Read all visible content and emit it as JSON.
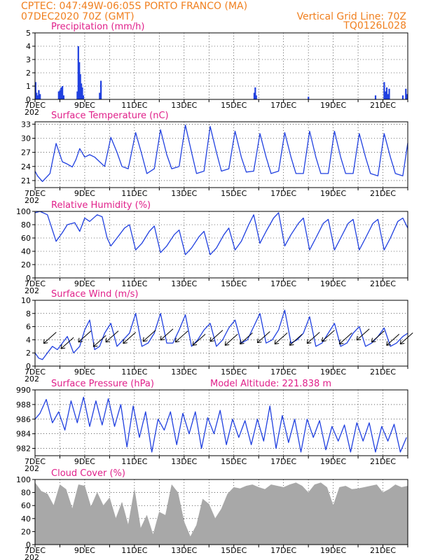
{
  "header": {
    "line1": "CPTEC:    047:49W-06:05S   PORTO FRANCO (MA)",
    "line2": "07DEC2020 70Z (GMT)",
    "grid_note": "Vertical Grid Line: 70Z",
    "code": "TQ0126L028"
  },
  "colors": {
    "header": "#f08020",
    "title": "#e0208a",
    "series": "#2040e0",
    "cloud": "#a8a8a8",
    "arrow": "#000000"
  },
  "x_axis": {
    "start_day": 7,
    "end_day": 22,
    "labels": [
      {
        "day": 7,
        "text": "7DEC"
      },
      {
        "day": 9,
        "text": "9DEC"
      },
      {
        "day": 11,
        "text": "11DEC"
      },
      {
        "day": 13,
        "text": "13DEC"
      },
      {
        "day": 15,
        "text": "15DEC"
      },
      {
        "day": 17,
        "text": "17DEC"
      },
      {
        "day": 19,
        "text": "19DEC"
      },
      {
        "day": 21,
        "text": "21DEC"
      }
    ],
    "year_stub": "202"
  },
  "chart_data": [
    {
      "id": "precip",
      "type": "bar",
      "title": "Precipitation  (mm/h)",
      "ylim": [
        0,
        5
      ],
      "yticks": [
        0,
        1,
        2,
        3,
        4,
        5
      ],
      "x": [
        7.02,
        7.06,
        7.1,
        7.15,
        7.2,
        7.95,
        8.0,
        8.05,
        8.1,
        8.15,
        8.7,
        8.74,
        8.78,
        8.82,
        8.86,
        8.9,
        8.94,
        9.6,
        9.65,
        15.82,
        15.86,
        15.9,
        18.0,
        20.7,
        21.05,
        21.1,
        21.15,
        21.2,
        21.25,
        21.8,
        21.92,
        21.97
      ],
      "values": [
        1.3,
        0.5,
        0.3,
        0.7,
        0.4,
        0.6,
        0.7,
        0.9,
        1.0,
        0.3,
        0.6,
        4.0,
        2.8,
        1.9,
        1.2,
        0.9,
        0.3,
        0.5,
        1.4,
        0.5,
        0.9,
        0.3,
        0.2,
        0.3,
        1.3,
        0.6,
        0.9,
        0.4,
        0.8,
        0.3,
        0.8,
        0.4
      ]
    },
    {
      "id": "temp",
      "type": "line",
      "title": "Surface Temperature (nC)",
      "ylim": [
        19.5,
        33.5
      ],
      "yticks": [
        21,
        24,
        27,
        30,
        33
      ],
      "x": [
        7.0,
        7.1,
        7.3,
        7.6,
        7.85,
        8.1,
        8.3,
        8.5,
        8.65,
        8.8,
        9.0,
        9.2,
        9.4,
        9.6,
        9.8,
        10.05,
        10.3,
        10.5,
        10.75,
        11.05,
        11.3,
        11.5,
        11.8,
        12.05,
        12.3,
        12.5,
        12.8,
        13.05,
        13.3,
        13.5,
        13.8,
        14.05,
        14.3,
        14.5,
        14.8,
        15.05,
        15.3,
        15.5,
        15.8,
        16.05,
        16.3,
        16.5,
        16.8,
        17.05,
        17.3,
        17.5,
        17.8,
        18.05,
        18.3,
        18.5,
        18.8,
        19.05,
        19.3,
        19.5,
        19.8,
        20.05,
        20.3,
        20.5,
        20.8,
        21.05,
        21.3,
        21.5,
        21.8,
        22.0
      ],
      "values": [
        23.0,
        22.0,
        20.8,
        22.5,
        28.9,
        25.0,
        24.5,
        23.9,
        25.5,
        27.8,
        26.0,
        26.5,
        26.0,
        25.0,
        24.0,
        30.2,
        27.0,
        24.0,
        23.5,
        31.2,
        26.5,
        22.5,
        23.5,
        31.8,
        26.5,
        23.5,
        24.0,
        32.8,
        27.0,
        22.5,
        23.0,
        32.5,
        27.0,
        23.0,
        23.5,
        31.5,
        26.0,
        22.8,
        23.0,
        31.0,
        26.0,
        22.5,
        23.0,
        31.2,
        26.0,
        22.5,
        22.5,
        31.5,
        26.0,
        22.5,
        22.5,
        31.5,
        26.0,
        22.5,
        22.5,
        31.0,
        26.0,
        22.5,
        22.0,
        31.0,
        26.0,
        22.5,
        22.0,
        29.0
      ]
    },
    {
      "id": "rh",
      "type": "line",
      "title": "Relative Humidity (%)",
      "ylim": [
        0,
        100
      ],
      "yticks": [
        0,
        20,
        40,
        60,
        80,
        100
      ],
      "x": [
        7.0,
        7.2,
        7.5,
        7.85,
        8.1,
        8.3,
        8.6,
        8.8,
        9.0,
        9.2,
        9.5,
        9.7,
        9.9,
        10.05,
        10.3,
        10.6,
        10.8,
        11.05,
        11.3,
        11.6,
        11.8,
        12.05,
        12.3,
        12.6,
        12.8,
        13.05,
        13.3,
        13.6,
        13.8,
        14.05,
        14.3,
        14.6,
        14.8,
        15.05,
        15.3,
        15.6,
        15.8,
        16.05,
        16.3,
        16.6,
        16.8,
        17.05,
        17.3,
        17.6,
        17.8,
        18.05,
        18.3,
        18.6,
        18.8,
        19.05,
        19.3,
        19.6,
        19.8,
        20.05,
        20.3,
        20.6,
        20.8,
        21.05,
        21.3,
        21.6,
        21.8,
        22.0
      ],
      "values": [
        98,
        100,
        95,
        55,
        68,
        80,
        83,
        70,
        90,
        85,
        95,
        92,
        60,
        48,
        60,
        75,
        80,
        42,
        52,
        70,
        78,
        38,
        48,
        65,
        72,
        35,
        45,
        62,
        70,
        35,
        45,
        65,
        75,
        42,
        55,
        80,
        95,
        52,
        70,
        90,
        98,
        48,
        65,
        82,
        90,
        42,
        60,
        82,
        88,
        42,
        60,
        82,
        88,
        42,
        60,
        82,
        88,
        42,
        60,
        85,
        90,
        75
      ]
    },
    {
      "id": "wind",
      "type": "line",
      "title": "Surface Wind (m/s)",
      "ylim": [
        0,
        10
      ],
      "yticks": [
        0,
        2,
        4,
        6,
        8,
        10
      ],
      "x": [
        7.0,
        7.15,
        7.3,
        7.5,
        7.7,
        7.9,
        8.1,
        8.3,
        8.55,
        8.8,
        9.0,
        9.2,
        9.4,
        9.6,
        9.8,
        10.05,
        10.3,
        10.55,
        10.8,
        11.05,
        11.3,
        11.55,
        11.8,
        12.05,
        12.3,
        12.55,
        12.8,
        13.05,
        13.3,
        13.55,
        13.8,
        14.05,
        14.3,
        14.55,
        14.8,
        15.05,
        15.3,
        15.55,
        15.8,
        16.05,
        16.3,
        16.55,
        16.8,
        17.05,
        17.3,
        17.55,
        17.8,
        18.05,
        18.3,
        18.55,
        18.8,
        19.05,
        19.3,
        19.55,
        19.8,
        20.05,
        20.3,
        20.55,
        20.8,
        21.05,
        21.3,
        21.55,
        21.8,
        22.0
      ],
      "values": [
        2.0,
        1.2,
        1.0,
        2.0,
        3.0,
        2.5,
        3.5,
        4.5,
        2.0,
        3.0,
        5.5,
        7.0,
        2.5,
        3.0,
        5.0,
        6.5,
        3.0,
        4.0,
        5.0,
        8.0,
        3.0,
        3.5,
        5.0,
        8.0,
        3.5,
        3.5,
        5.5,
        7.8,
        3.0,
        4.0,
        5.5,
        6.5,
        3.0,
        4.0,
        5.8,
        7.0,
        3.5,
        4.0,
        6.0,
        8.0,
        3.5,
        4.0,
        5.5,
        8.5,
        3.5,
        4.0,
        5.0,
        7.5,
        3.0,
        3.5,
        5.0,
        6.5,
        3.0,
        3.5,
        5.0,
        6.0,
        3.0,
        3.5,
        4.5,
        5.8,
        3.0,
        3.5,
        4.5,
        5.0
      ],
      "barbs": [
        {
          "x": 7.6,
          "y": 4.3
        },
        {
          "x": 8.3,
          "y": 3.5
        },
        {
          "x": 9.0,
          "y": 4.5
        },
        {
          "x": 9.6,
          "y": 3.8
        },
        {
          "x": 10.1,
          "y": 4.5
        },
        {
          "x": 10.8,
          "y": 4.3
        },
        {
          "x": 11.6,
          "y": 4.6
        },
        {
          "x": 12.3,
          "y": 4.8
        },
        {
          "x": 12.9,
          "y": 4.5
        },
        {
          "x": 13.6,
          "y": 4.0
        },
        {
          "x": 14.3,
          "y": 4.6
        },
        {
          "x": 14.9,
          "y": 4.0
        },
        {
          "x": 15.5,
          "y": 4.2
        },
        {
          "x": 16.2,
          "y": 4.4
        },
        {
          "x": 16.9,
          "y": 4.2
        },
        {
          "x": 17.5,
          "y": 4.0
        },
        {
          "x": 18.2,
          "y": 4.3
        },
        {
          "x": 18.8,
          "y": 4.6
        },
        {
          "x": 19.5,
          "y": 4.2
        },
        {
          "x": 20.2,
          "y": 4.8
        },
        {
          "x": 20.8,
          "y": 4.5
        },
        {
          "x": 21.4,
          "y": 4.0
        },
        {
          "x": 21.95,
          "y": 4.2
        }
      ]
    },
    {
      "id": "pres",
      "type": "line",
      "title": "Surface Pressure (hPa)",
      "note": "Model Altitude: 221.838  m",
      "ylim": [
        981,
        990
      ],
      "yticks": [
        982,
        984,
        986,
        988,
        990
      ],
      "x": [
        7.0,
        7.2,
        7.45,
        7.7,
        7.95,
        8.2,
        8.45,
        8.7,
        8.95,
        9.2,
        9.45,
        9.7,
        9.95,
        10.2,
        10.45,
        10.7,
        10.95,
        11.2,
        11.45,
        11.7,
        11.95,
        12.2,
        12.45,
        12.7,
        12.95,
        13.2,
        13.45,
        13.7,
        13.95,
        14.2,
        14.45,
        14.7,
        14.95,
        15.2,
        15.45,
        15.7,
        15.95,
        16.2,
        16.45,
        16.7,
        16.95,
        17.2,
        17.45,
        17.7,
        17.95,
        18.2,
        18.45,
        18.7,
        18.95,
        19.2,
        19.45,
        19.7,
        19.95,
        20.2,
        20.45,
        20.7,
        20.95,
        21.2,
        21.45,
        21.7,
        21.95
      ],
      "values": [
        986.0,
        986.8,
        988.7,
        985.5,
        987.0,
        984.5,
        988.5,
        985.5,
        989.0,
        985.0,
        988.5,
        985.2,
        988.8,
        985.0,
        988.0,
        982.2,
        987.8,
        983.5,
        987.0,
        981.5,
        986.0,
        984.5,
        987.0,
        982.5,
        986.8,
        984.0,
        987.0,
        982.0,
        986.2,
        984.0,
        987.2,
        982.5,
        986.0,
        983.5,
        985.8,
        982.5,
        986.0,
        983.0,
        987.8,
        982.0,
        986.5,
        982.8,
        986.0,
        981.5,
        986.0,
        983.5,
        985.8,
        981.8,
        985.0,
        983.0,
        985.2,
        981.5,
        985.5,
        983.0,
        985.5,
        981.5,
        985.0,
        983.0,
        985.3,
        981.5,
        983.5
      ]
    },
    {
      "id": "cloud",
      "type": "area",
      "title": "Cloud Cover (%)",
      "ylim": [
        0,
        100
      ],
      "yticks": [
        0,
        20,
        40,
        60,
        80,
        100
      ],
      "x": [
        7.0,
        7.25,
        7.5,
        7.75,
        8.0,
        8.25,
        8.5,
        8.75,
        9.0,
        9.25,
        9.5,
        9.75,
        10.0,
        10.25,
        10.5,
        10.75,
        11.0,
        11.25,
        11.5,
        11.75,
        12.0,
        12.25,
        12.5,
        12.75,
        13.0,
        13.25,
        13.5,
        13.75,
        14.0,
        14.25,
        14.5,
        14.75,
        15.0,
        15.25,
        15.5,
        15.75,
        16.0,
        16.25,
        16.5,
        16.75,
        17.0,
        17.25,
        17.5,
        17.75,
        18.0,
        18.25,
        18.5,
        18.75,
        19.0,
        19.25,
        19.5,
        19.75,
        20.0,
        20.25,
        20.5,
        20.75,
        21.0,
        21.25,
        21.5,
        21.75,
        22.0
      ],
      "values": [
        95,
        82,
        78,
        60,
        92,
        85,
        55,
        92,
        90,
        58,
        80,
        60,
        72,
        40,
        65,
        30,
        85,
        25,
        45,
        15,
        50,
        45,
        92,
        80,
        35,
        12,
        30,
        70,
        62,
        40,
        55,
        78,
        88,
        86,
        90,
        92,
        88,
        85,
        92,
        90,
        88,
        92,
        95,
        90,
        80,
        92,
        95,
        88,
        60,
        88,
        90,
        85,
        86,
        88,
        90,
        92,
        80,
        85,
        92,
        88,
        90
      ]
    }
  ]
}
